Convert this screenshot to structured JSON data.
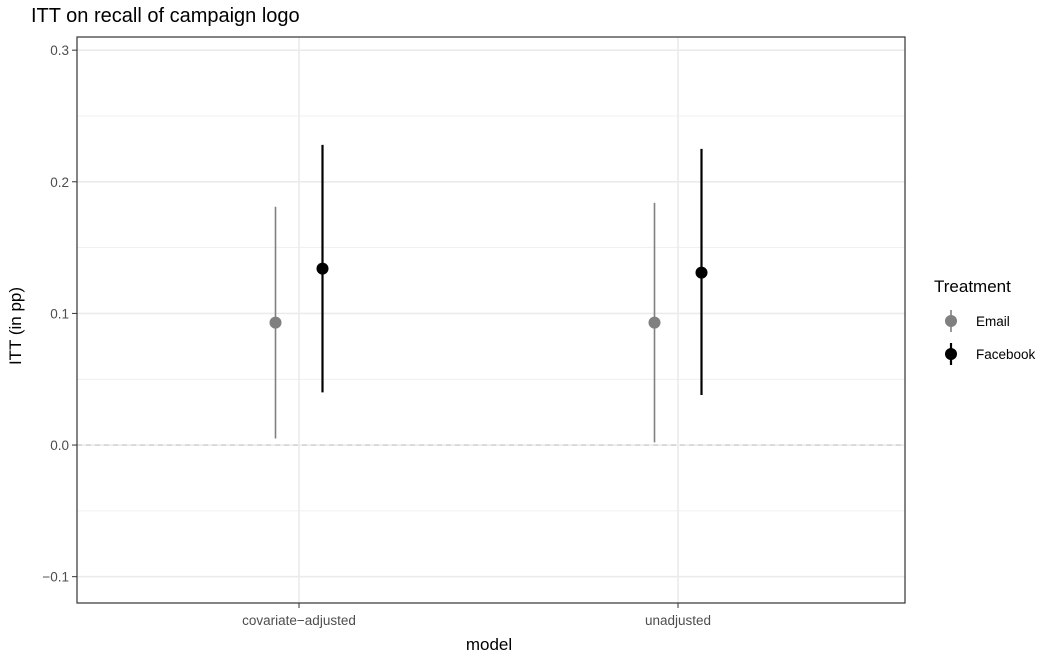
{
  "chart_data": {
    "type": "scatter",
    "subtype": "point-range",
    "title": "ITT on recall of campaign logo",
    "xlabel": "model",
    "ylabel": "ITT (in pp)",
    "categories": [
      "covariate−adjusted",
      "unadjusted"
    ],
    "ylim": [
      -0.12,
      0.31
    ],
    "yticks": [
      -0.1,
      0.0,
      0.1,
      0.2,
      0.3
    ],
    "ytick_labels": [
      "−0.1",
      "0.0",
      "0.1",
      "0.2",
      "0.3"
    ],
    "reference_line": {
      "y": 0,
      "style": "dashed"
    },
    "grid": true,
    "legend": {
      "title": "Treatment",
      "position": "right"
    },
    "series": [
      {
        "name": "Email",
        "color": "#808080",
        "points": [
          {
            "category": "covariate−adjusted",
            "estimate": 0.093,
            "lower": 0.005,
            "upper": 0.181
          },
          {
            "category": "unadjusted",
            "estimate": 0.093,
            "lower": 0.002,
            "upper": 0.184
          }
        ]
      },
      {
        "name": "Facebook",
        "color": "#000000",
        "points": [
          {
            "category": "covariate−adjusted",
            "estimate": 0.134,
            "lower": 0.04,
            "upper": 0.228
          },
          {
            "category": "unadjusted",
            "estimate": 0.131,
            "lower": 0.038,
            "upper": 0.225
          }
        ]
      }
    ]
  }
}
